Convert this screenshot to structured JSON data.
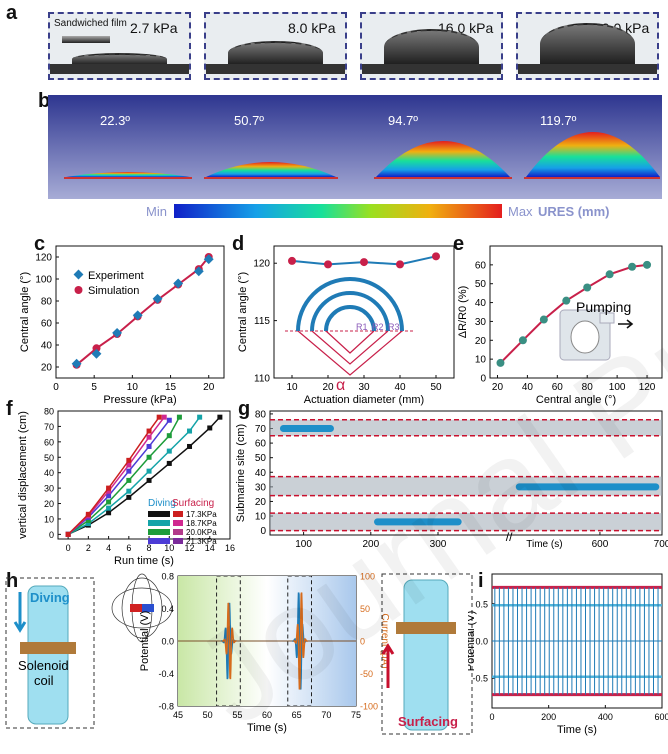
{
  "panels": {
    "a": "a",
    "b": "b",
    "c": "c",
    "d": "d",
    "e": "e",
    "f": "f",
    "g": "g",
    "h": "h",
    "i": "i"
  },
  "panel_a": {
    "film_label": "Sandwiched film",
    "pressures": [
      "2.7 kPa",
      "8.0 kPa",
      "16.0 kPa",
      "20.0 kPa"
    ]
  },
  "panel_b": {
    "angles": [
      "22.3º",
      "50.7º",
      "94.7º",
      "119.7º"
    ],
    "min_label": "Min",
    "max_label": "Max",
    "unit_label": "URES (mm)"
  },
  "colors": {
    "blue": "#1f7bb6",
    "red": "#c8204a",
    "dashed": "#c8102e",
    "band": "#9ea9b5",
    "orange": "#d66b1c",
    "bubble": "#1d8fc9"
  },
  "chart_data": [
    {
      "panel": "c",
      "type": "scatter",
      "xlabel": "Pressure (kPa)",
      "ylabel": "Central angle (°)",
      "xlim": [
        0,
        22
      ],
      "ylim": [
        10,
        130
      ],
      "xticks": [
        "0",
        "5",
        "10",
        "15",
        "20"
      ],
      "yticks": [
        "20",
        "40",
        "60",
        "80",
        "100",
        "120"
      ],
      "series": [
        {
          "name": "Experiment",
          "x": [
            2.7,
            5.3,
            8.0,
            10.7,
            13.3,
            16.0,
            18.7,
            20.0
          ],
          "y": [
            23,
            32,
            51,
            67,
            82,
            96,
            107,
            118
          ]
        },
        {
          "name": "Simulation",
          "x": [
            2.7,
            5.3,
            8.0,
            10.7,
            13.3,
            16.0,
            18.7,
            20.0
          ],
          "y": [
            22,
            37,
            50,
            66,
            81,
            95,
            109,
            120
          ]
        }
      ]
    },
    {
      "panel": "d",
      "type": "line",
      "xlabel": "Actuation diameter (mm)",
      "ylabel": "Central angle (°)",
      "xlim": [
        5,
        55
      ],
      "ylim": [
        110,
        121.5
      ],
      "xticks": [
        "10",
        "20",
        "30",
        "40",
        "50"
      ],
      "yticks": [
        "110",
        "115",
        "120"
      ],
      "x": [
        10,
        20,
        30,
        40,
        50
      ],
      "y": [
        120.2,
        119.9,
        120.1,
        119.9,
        120.6
      ],
      "diagram": {
        "labels": [
          "R1",
          "R2",
          "R3"
        ],
        "angle": "α"
      }
    },
    {
      "panel": "e",
      "type": "line",
      "xlabel": "Central angle (°)",
      "ylabel": "ΔR/R0 (%)",
      "xlim": [
        15,
        130
      ],
      "ylim": [
        0,
        70
      ],
      "xticks": [
        "20",
        "40",
        "60",
        "80",
        "100",
        "120"
      ],
      "yticks": [
        "0",
        "10",
        "20",
        "30",
        "40",
        "50",
        "60"
      ],
      "x": [
        22,
        37,
        51,
        66,
        80,
        95,
        110,
        120
      ],
      "y": [
        8,
        20,
        31,
        41,
        48,
        55,
        59,
        60
      ],
      "annotation": "Pumping"
    },
    {
      "panel": "f",
      "type": "scatter",
      "xlabel": "Run time (s)",
      "ylabel": "vertical displacement (cm)",
      "xlim": [
        -1,
        16
      ],
      "ylim": [
        -3,
        80
      ],
      "xticks": [
        "0",
        "2",
        "4",
        "6",
        "8",
        "10",
        "12",
        "14",
        "16"
      ],
      "yticks": [
        "0",
        "10",
        "20",
        "30",
        "40",
        "50",
        "60",
        "70",
        "80"
      ],
      "legend": {
        "diving": "Diving",
        "surfacing": "Surfacing",
        "entries": [
          "17.3KPa",
          "18.7KPa",
          "20.0KPa",
          "21.3KPa"
        ]
      },
      "series": [
        {
          "name": "17.3KPa",
          "x": [
            0,
            2,
            4,
            6,
            8,
            10,
            12,
            14,
            15
          ],
          "y": [
            0,
            6,
            14,
            24,
            35,
            46,
            57,
            69,
            76
          ],
          "color": "#111111"
        },
        {
          "name": "18.7KPa",
          "x": [
            0,
            2,
            4,
            6,
            8,
            10,
            12,
            13
          ],
          "y": [
            0,
            7,
            17,
            28,
            41,
            54,
            67,
            76
          ],
          "color": "#14a3a8"
        },
        {
          "name": "20.0KPa",
          "x": [
            0,
            2,
            4,
            6,
            8,
            10,
            11
          ],
          "y": [
            0,
            9,
            21,
            35,
            50,
            64,
            76
          ],
          "color": "#1d9c3a"
        },
        {
          "name": "21.3KPa",
          "x": [
            0,
            2,
            4,
            6,
            8,
            10
          ],
          "y": [
            0,
            11,
            25,
            41,
            57,
            74
          ],
          "color": "#4c3bd6"
        },
        {
          "name": "surf-magenta",
          "x": [
            0,
            2,
            4,
            6,
            8,
            9.5
          ],
          "y": [
            0,
            12,
            28,
            45,
            63,
            76
          ],
          "color": "#d02890"
        },
        {
          "name": "surf-red",
          "x": [
            0,
            2,
            4,
            6,
            8,
            9
          ],
          "y": [
            0,
            13,
            30,
            48,
            67,
            76
          ],
          "color": "#cc1f1f"
        }
      ]
    },
    {
      "panel": "g",
      "type": "line",
      "xlabel": "Time (s)",
      "ylabel": "Submarine site (cm)",
      "ylim": [
        -3,
        82
      ],
      "xticks": [
        "100",
        "200",
        "300",
        "600",
        "700"
      ],
      "yticks": [
        "0",
        "10",
        "20",
        "30",
        "40",
        "50",
        "60",
        "70",
        "80"
      ],
      "bands": [
        [
          65,
          76
        ],
        [
          24,
          37
        ],
        [
          0,
          12
        ]
      ]
    },
    {
      "panel": "h",
      "type": "line",
      "xlabel": "Time (s)",
      "ylabel": "Potential (V)",
      "y2label": "Current (μA)",
      "xlim": [
        45,
        75
      ],
      "ylim": [
        -0.8,
        0.8
      ],
      "y2lim": [
        -100,
        100
      ],
      "xticks": [
        "45",
        "50",
        "55",
        "60",
        "65",
        "70",
        "75"
      ],
      "yticks": [
        "-0.8",
        "-0.4",
        "0.0",
        "0.4",
        "0.8"
      ],
      "y2ticks": [
        "-100",
        "-50",
        "0",
        "50",
        "100"
      ],
      "labels": {
        "diving": "Diving",
        "solenoid": "Solenoid coil",
        "surfacing": "Surfacing"
      }
    },
    {
      "panel": "i",
      "type": "line",
      "xlabel": "Time (s)",
      "ylabel": "Potential (V)",
      "xlim": [
        0,
        600
      ],
      "ylim": [
        -0.9,
        0.9
      ],
      "xticks": [
        "0",
        "200",
        "400",
        "600"
      ],
      "yticks": [
        "-0.5",
        "0.0",
        "0.5"
      ]
    }
  ],
  "watermark": "Journal Pre-proof"
}
